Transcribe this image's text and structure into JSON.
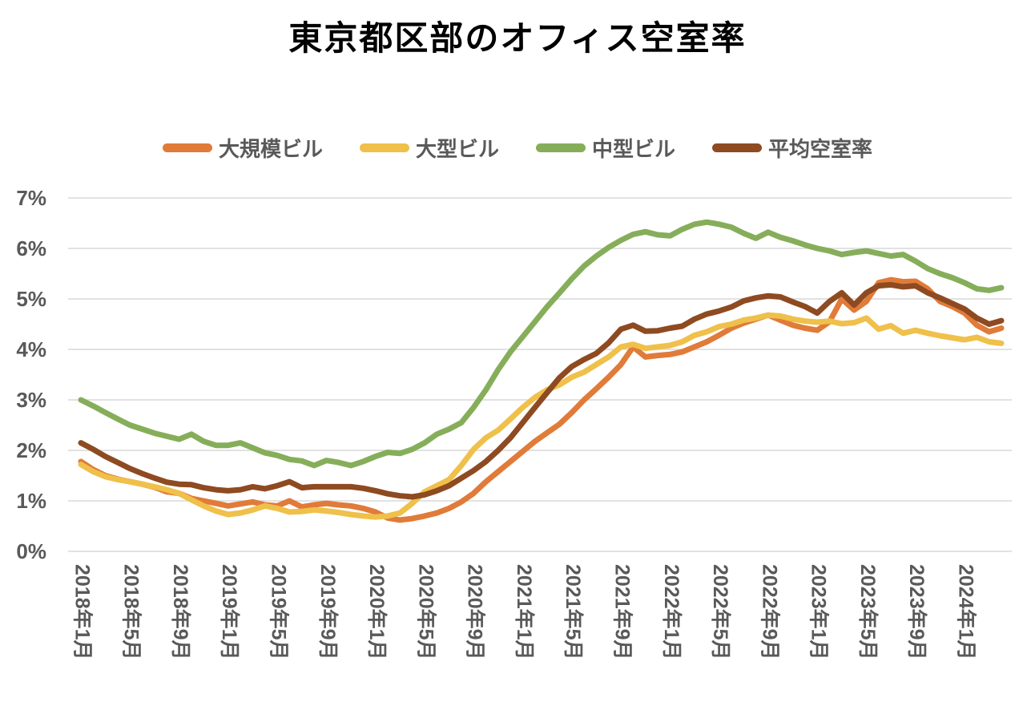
{
  "title": "東京都区部のオフィス空室率",
  "y_axis": {
    "min": 0,
    "max": 7,
    "step": 1,
    "tick_labels": [
      "0%",
      "1%",
      "2%",
      "3%",
      "4%",
      "5%",
      "6%",
      "7%"
    ]
  },
  "x_axis": {
    "tick_every_months": 4,
    "tick_labels": [
      "2018年1月",
      "2018年5月",
      "2018年9月",
      "2019年1月",
      "2019年5月",
      "2019年9月",
      "2020年1月",
      "2020年5月",
      "2020年9月",
      "2021年1月",
      "2021年5月",
      "2021年9月",
      "2022年1月",
      "2022年5月",
      "2022年9月",
      "2023年1月",
      "2023年5月",
      "2023年9月",
      "2024年1月"
    ]
  },
  "colors": {
    "grid": "#D9D9D9",
    "axis_text": "#595959",
    "title_text": "#000000"
  },
  "chart_data": {
    "type": "line",
    "title": "東京都区部のオフィス空室率",
    "xlabel": "",
    "ylabel": "",
    "ylim": [
      0,
      7
    ],
    "grid": "horizontal",
    "legend_position": "top",
    "categories": [
      "2018-01",
      "2018-02",
      "2018-03",
      "2018-04",
      "2018-05",
      "2018-06",
      "2018-07",
      "2018-08",
      "2018-09",
      "2018-10",
      "2018-11",
      "2018-12",
      "2019-01",
      "2019-02",
      "2019-03",
      "2019-04",
      "2019-05",
      "2019-06",
      "2019-07",
      "2019-08",
      "2019-09",
      "2019-10",
      "2019-11",
      "2019-12",
      "2020-01",
      "2020-02",
      "2020-03",
      "2020-04",
      "2020-05",
      "2020-06",
      "2020-07",
      "2020-08",
      "2020-09",
      "2020-10",
      "2020-11",
      "2020-12",
      "2021-01",
      "2021-02",
      "2021-03",
      "2021-04",
      "2021-05",
      "2021-06",
      "2021-07",
      "2021-08",
      "2021-09",
      "2021-10",
      "2021-11",
      "2021-12",
      "2022-01",
      "2022-02",
      "2022-03",
      "2022-04",
      "2022-05",
      "2022-06",
      "2022-07",
      "2022-08",
      "2022-09",
      "2022-10",
      "2022-11",
      "2022-12",
      "2023-01",
      "2023-02",
      "2023-03",
      "2023-04",
      "2023-05",
      "2023-06",
      "2023-07",
      "2023-08",
      "2023-09",
      "2023-10",
      "2023-11",
      "2023-12",
      "2024-01",
      "2024-02",
      "2024-03",
      "2024-04"
    ],
    "series": [
      {
        "name": "大規模ビル",
        "color": "#E07B39",
        "values": [
          1.78,
          1.62,
          1.5,
          1.43,
          1.38,
          1.33,
          1.27,
          1.18,
          1.15,
          1.05,
          1.0,
          0.95,
          0.9,
          0.94,
          0.98,
          0.92,
          0.9,
          1.0,
          0.88,
          0.92,
          0.95,
          0.92,
          0.9,
          0.85,
          0.78,
          0.66,
          0.62,
          0.65,
          0.7,
          0.76,
          0.85,
          0.98,
          1.15,
          1.38,
          1.58,
          1.78,
          1.98,
          2.18,
          2.35,
          2.52,
          2.75,
          3.0,
          3.22,
          3.45,
          3.7,
          4.05,
          3.85,
          3.88,
          3.9,
          3.95,
          4.05,
          4.15,
          4.28,
          4.42,
          4.52,
          4.6,
          4.68,
          4.58,
          4.48,
          4.42,
          4.38,
          4.55,
          5.0,
          4.78,
          4.95,
          5.32,
          5.38,
          5.34,
          5.35,
          5.2,
          4.95,
          4.85,
          4.72,
          4.48,
          4.35,
          4.42
        ]
      },
      {
        "name": "大型ビル",
        "color": "#EFC04A",
        "values": [
          1.72,
          1.58,
          1.48,
          1.42,
          1.38,
          1.33,
          1.28,
          1.22,
          1.15,
          1.02,
          0.9,
          0.8,
          0.73,
          0.76,
          0.82,
          0.9,
          0.85,
          0.78,
          0.79,
          0.82,
          0.8,
          0.77,
          0.73,
          0.7,
          0.68,
          0.7,
          0.76,
          0.95,
          1.18,
          1.3,
          1.42,
          1.7,
          2.02,
          2.25,
          2.4,
          2.62,
          2.85,
          3.05,
          3.2,
          3.3,
          3.45,
          3.55,
          3.7,
          3.85,
          4.05,
          4.1,
          4.02,
          4.05,
          4.08,
          4.15,
          4.28,
          4.35,
          4.45,
          4.5,
          4.58,
          4.62,
          4.68,
          4.66,
          4.6,
          4.56,
          4.54,
          4.56,
          4.51,
          4.53,
          4.62,
          4.4,
          4.47,
          4.32,
          4.38,
          4.32,
          4.27,
          4.23,
          4.19,
          4.24,
          4.15,
          4.12
        ]
      },
      {
        "name": "中型ビル",
        "color": "#86AE5A",
        "values": [
          3.0,
          2.88,
          2.75,
          2.62,
          2.5,
          2.42,
          2.34,
          2.28,
          2.22,
          2.32,
          2.18,
          2.1,
          2.1,
          2.15,
          2.05,
          1.95,
          1.9,
          1.82,
          1.79,
          1.7,
          1.8,
          1.76,
          1.7,
          1.78,
          1.88,
          1.96,
          1.94,
          2.02,
          2.15,
          2.32,
          2.42,
          2.55,
          2.85,
          3.2,
          3.6,
          3.95,
          4.25,
          4.55,
          4.85,
          5.12,
          5.4,
          5.65,
          5.85,
          6.02,
          6.16,
          6.28,
          6.33,
          6.27,
          6.25,
          6.38,
          6.48,
          6.52,
          6.48,
          6.42,
          6.3,
          6.2,
          6.32,
          6.22,
          6.15,
          6.07,
          6.0,
          5.95,
          5.88,
          5.92,
          5.95,
          5.9,
          5.85,
          5.88,
          5.75,
          5.6,
          5.5,
          5.42,
          5.32,
          5.2,
          5.17,
          5.22
        ]
      },
      {
        "name": "平均空室率",
        "color": "#8E4A21",
        "values": [
          2.15,
          2.02,
          1.88,
          1.76,
          1.64,
          1.54,
          1.45,
          1.37,
          1.33,
          1.32,
          1.26,
          1.22,
          1.2,
          1.22,
          1.28,
          1.24,
          1.3,
          1.38,
          1.26,
          1.28,
          1.28,
          1.28,
          1.28,
          1.25,
          1.2,
          1.14,
          1.1,
          1.08,
          1.12,
          1.2,
          1.3,
          1.45,
          1.6,
          1.78,
          2.0,
          2.25,
          2.55,
          2.85,
          3.15,
          3.44,
          3.66,
          3.8,
          3.92,
          4.13,
          4.4,
          4.48,
          4.36,
          4.37,
          4.42,
          4.46,
          4.6,
          4.7,
          4.76,
          4.84,
          4.96,
          5.02,
          5.06,
          5.04,
          4.94,
          4.85,
          4.72,
          4.95,
          5.12,
          4.88,
          5.12,
          5.26,
          5.28,
          5.24,
          5.26,
          5.12,
          5.02,
          4.91,
          4.8,
          4.62,
          4.5,
          4.57
        ]
      }
    ]
  }
}
